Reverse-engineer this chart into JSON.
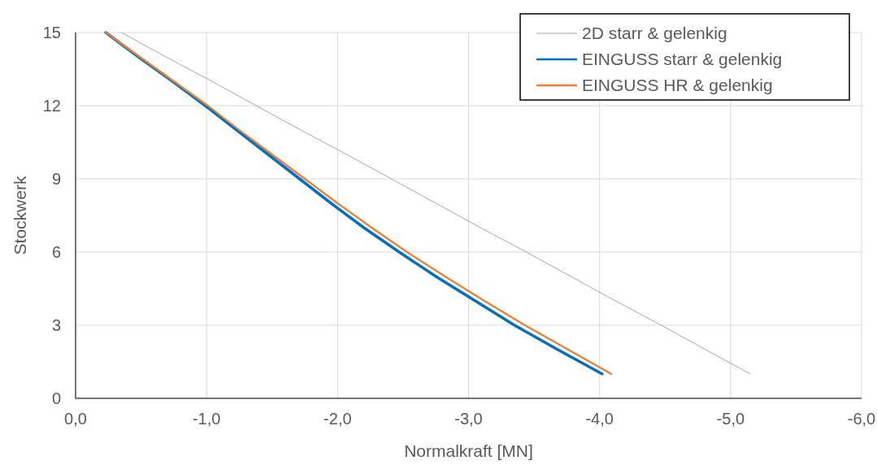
{
  "chart_data": {
    "type": "line",
    "xlabel": "Normalkraft [MN]",
    "ylabel": "Stockwerk",
    "xlim": [
      0,
      -6
    ],
    "xticks": [
      {
        "value": 0,
        "label": "0,0"
      },
      {
        "value": -1,
        "label": "-1,0"
      },
      {
        "value": -2,
        "label": "-2,0"
      },
      {
        "value": -3,
        "label": "-3,0"
      },
      {
        "value": -4,
        "label": "-4,0"
      },
      {
        "value": -5,
        "label": "-5,0"
      },
      {
        "value": -6,
        "label": "-6,0"
      }
    ],
    "ylim": [
      0,
      15
    ],
    "yticks": [
      0,
      3,
      6,
      9,
      12,
      15
    ],
    "grid": true,
    "legend": "top right",
    "marker": "none",
    "line_style": "solid",
    "series": [
      {
        "name": "2D starr & gelenkig",
        "color": "#a5a5a5",
        "x": [
          -0.35,
          -0.69,
          -1.04,
          -1.38,
          -1.72,
          -2.07,
          -2.41,
          -2.75,
          -3.09,
          -3.44,
          -3.78,
          -4.12,
          -4.47,
          -4.81,
          -5.15
        ],
        "values": [
          15,
          14,
          13,
          12,
          11,
          10,
          9,
          8,
          7,
          6,
          5,
          4,
          3,
          2,
          1
        ]
      },
      {
        "name": "EINGUSS starr & gelenkig",
        "color": "#0070c0",
        "x": [
          -0.23,
          -0.48,
          -0.74,
          -0.99,
          -1.23,
          -1.47,
          -1.71,
          -1.95,
          -2.2,
          -2.47,
          -2.75,
          -3.05,
          -3.35,
          -3.68,
          -4.02
        ],
        "values": [
          15,
          14,
          13,
          12,
          11,
          10,
          9,
          8,
          7,
          6,
          5,
          4,
          3,
          2,
          1
        ]
      },
      {
        "name": "EINGUSS HR & gelenkig",
        "color": "#ed7d31",
        "x": [
          -0.23,
          -0.49,
          -0.75,
          -1.01,
          -1.25,
          -1.5,
          -1.75,
          -2.0,
          -2.26,
          -2.53,
          -2.82,
          -3.12,
          -3.43,
          -3.76,
          -4.09
        ],
        "values": [
          15,
          14,
          13,
          12,
          11,
          10,
          9,
          8,
          7,
          6,
          5,
          4,
          3,
          2,
          1
        ]
      }
    ]
  }
}
